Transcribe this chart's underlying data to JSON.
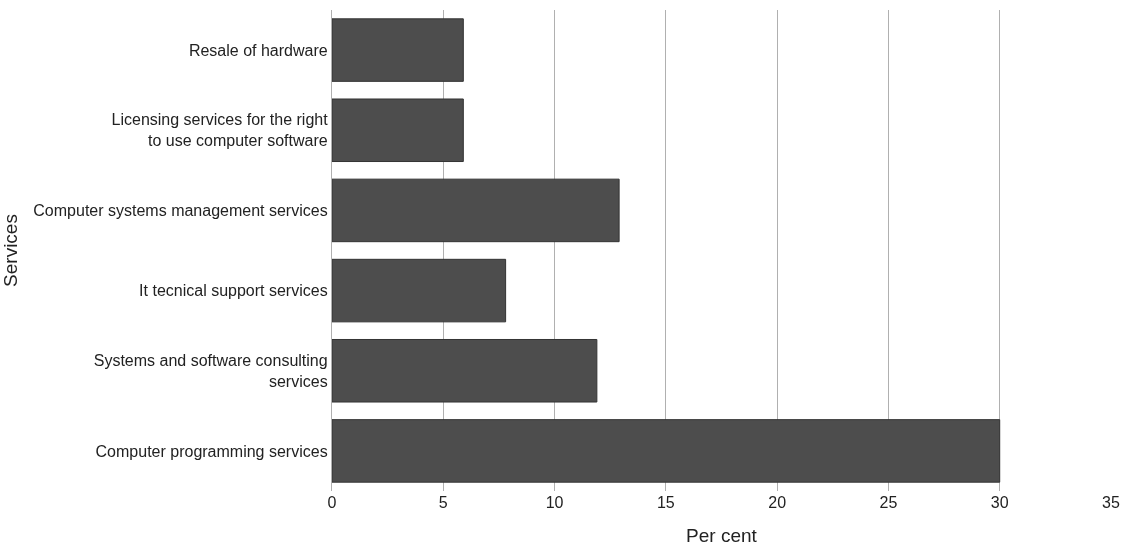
{
  "chart_data": {
    "type": "bar",
    "orientation": "horizontal",
    "xlabel": "Per cent",
    "ylabel": "Services",
    "categories": [
      "Resale of hardware",
      "Licensing services for the right\nto use computer software",
      "Computer systems management services",
      "It tecnical support services",
      "Systems and software consulting\nservices",
      "Computer programming services"
    ],
    "values": [
      5.9,
      5.9,
      12.9,
      7.8,
      11.9,
      30
    ],
    "color": "#4d4d4d",
    "xlim": [
      0,
      35
    ],
    "xticks": [
      0,
      5,
      10,
      15,
      20,
      25,
      30,
      35
    ],
    "grid": "x"
  }
}
